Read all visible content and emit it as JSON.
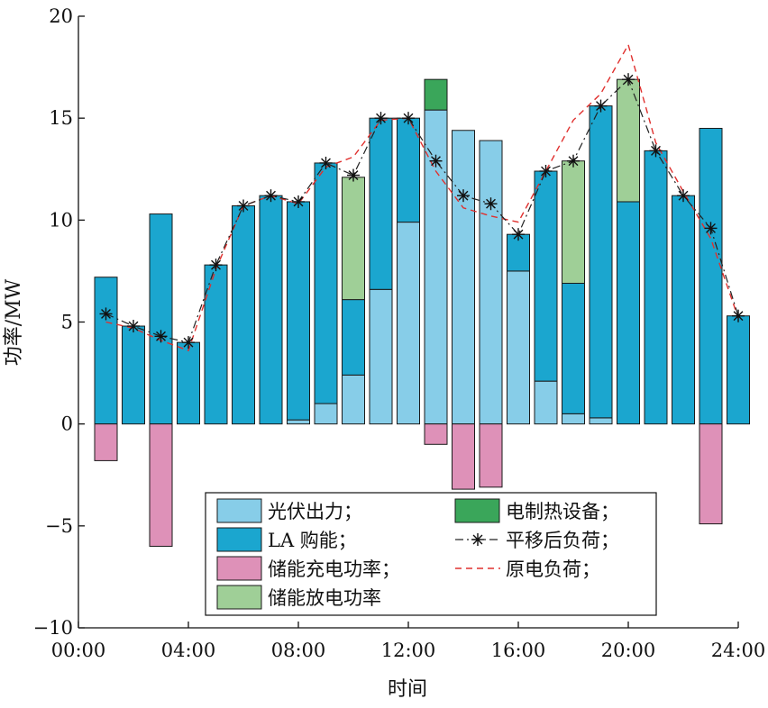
{
  "chart_data": {
    "type": "bar",
    "xlabel": "时间",
    "ylabel": "功率/MW",
    "xlim": [
      0,
      24
    ],
    "ylim": [
      -10,
      20
    ],
    "x_ticks": [
      0,
      4,
      8,
      12,
      16,
      20,
      24
    ],
    "x_tick_labels": [
      "00:00",
      "04:00",
      "08:00",
      "12:00",
      "16:00",
      "20:00",
      "24:00"
    ],
    "y_ticks": [
      -10,
      -5,
      0,
      5,
      10,
      15,
      20
    ],
    "y_tick_labels": [
      "−10",
      "−5",
      "0",
      "5",
      "10",
      "15",
      "20"
    ],
    "legend_position": "lower-center",
    "grid": false,
    "hours": [
      1,
      2,
      3,
      4,
      5,
      6,
      7,
      8,
      9,
      10,
      11,
      12,
      13,
      14,
      15,
      16,
      17,
      18,
      19,
      20,
      21,
      22,
      23,
      24
    ],
    "series": [
      {
        "name": "光伏出力；",
        "kind": "bar",
        "color": "#87cde8",
        "values": [
          0,
          0,
          0,
          0,
          0,
          0,
          0,
          0.2,
          1.0,
          2.4,
          6.6,
          9.9,
          15.4,
          14.4,
          13.9,
          7.5,
          2.1,
          0.5,
          0.3,
          0,
          0,
          0,
          0,
          0
        ]
      },
      {
        "name": "LA 购能；",
        "kind": "bar",
        "color": "#1ba6cf",
        "values": [
          7.2,
          4.8,
          10.3,
          4.0,
          7.8,
          10.7,
          11.2,
          10.7,
          11.8,
          3.7,
          8.4,
          5.1,
          0,
          0,
          0,
          1.8,
          10.3,
          6.4,
          15.3,
          10.9,
          13.4,
          11.2,
          14.5,
          5.3
        ]
      },
      {
        "name": "储能充电功率；",
        "kind": "bar",
        "color": "#de91b8",
        "values": [
          -1.8,
          0,
          -6.0,
          0,
          0,
          0,
          0,
          0,
          0,
          0,
          0,
          0,
          -1.0,
          -3.2,
          -3.1,
          0,
          0,
          0,
          0,
          0,
          0,
          0,
          -4.9,
          0
        ]
      },
      {
        "name": "储能放电功率",
        "kind": "bar",
        "color": "#9fcf97",
        "values": [
          0,
          0,
          0,
          0,
          0,
          0,
          0,
          0,
          0,
          6.0,
          0,
          0,
          0,
          0,
          0,
          0,
          0,
          6.0,
          0,
          6.0,
          0,
          0,
          0,
          0
        ]
      },
      {
        "name": "电制热设备；",
        "kind": "bar",
        "color": "#3aa65a",
        "values": [
          0,
          0,
          0,
          0,
          0,
          0,
          0,
          0,
          0,
          0,
          0,
          0,
          1.5,
          0,
          0,
          0,
          0,
          0,
          0,
          0,
          0,
          0,
          0,
          0
        ]
      },
      {
        "name": "平移后负荷；",
        "kind": "line",
        "color": "#222222",
        "values": [
          5.4,
          4.8,
          4.3,
          4.0,
          7.8,
          10.7,
          11.2,
          10.9,
          12.8,
          12.2,
          15.0,
          15.0,
          12.9,
          11.2,
          10.8,
          9.3,
          12.4,
          12.9,
          15.6,
          16.9,
          13.4,
          11.2,
          9.6,
          5.3
        ]
      },
      {
        "name": "原电负荷；",
        "kind": "line",
        "color": "#e0302e",
        "values": [
          5.0,
          4.7,
          4.1,
          3.6,
          7.6,
          10.7,
          11.2,
          10.8,
          12.6,
          13.1,
          14.9,
          15.0,
          12.4,
          10.6,
          10.2,
          9.9,
          12.4,
          14.9,
          16.2,
          18.6,
          13.8,
          11.4,
          9.1,
          5.2
        ]
      }
    ]
  }
}
